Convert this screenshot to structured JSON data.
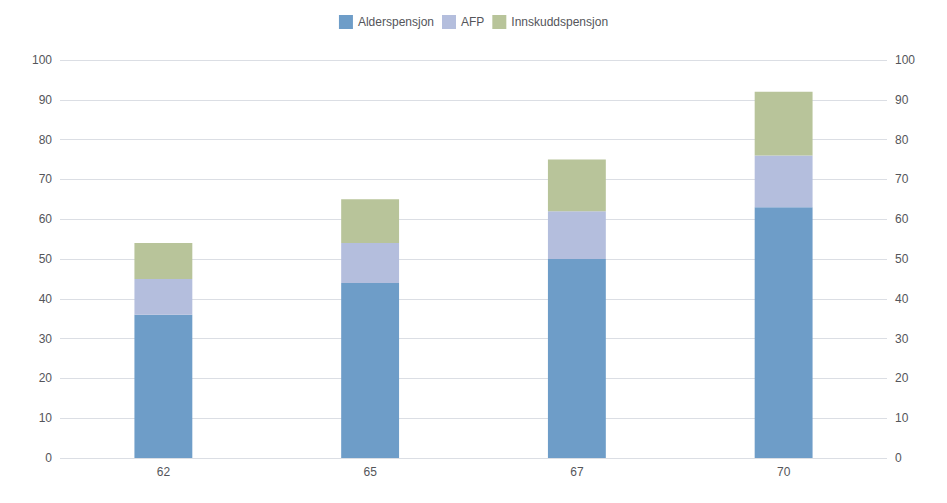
{
  "chart_data": {
    "type": "bar",
    "stacked": true,
    "categories": [
      "62",
      "65",
      "67",
      "70"
    ],
    "series": [
      {
        "name": "Alderspensjon",
        "color": "#6e9dc8",
        "values": [
          36,
          44,
          50,
          63
        ]
      },
      {
        "name": "AFP",
        "color": "#b4bedd",
        "values": [
          9,
          10,
          12,
          13
        ]
      },
      {
        "name": "Innskuddspensjon",
        "color": "#b8c49a",
        "values": [
          9,
          11,
          13,
          16
        ]
      }
    ],
    "ylim": [
      0,
      100
    ],
    "yticks": [
      0,
      10,
      20,
      30,
      40,
      50,
      60,
      70,
      80,
      90,
      100
    ],
    "y2lim": [
      0,
      100
    ],
    "y2ticks": [
      0,
      10,
      20,
      30,
      40,
      50,
      60,
      70,
      80,
      90,
      100
    ],
    "grid": true,
    "legend": "top"
  }
}
